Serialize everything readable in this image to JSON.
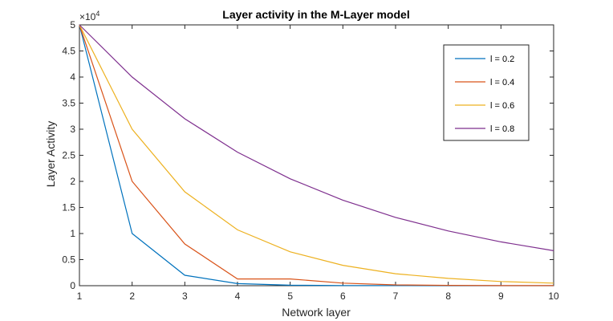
{
  "chart_data": {
    "type": "line",
    "title": "Layer activity in the M-Layer model",
    "xlabel": "Network layer",
    "ylabel": "Layer Activity",
    "y_exponent_base": "×10",
    "y_exponent_power": "4",
    "xlim": [
      1,
      10
    ],
    "ylim": [
      0,
      50000
    ],
    "x_ticks": [
      1,
      2,
      3,
      4,
      5,
      6,
      7,
      8,
      9,
      10
    ],
    "y_ticks": [
      0,
      5000,
      10000,
      15000,
      20000,
      25000,
      30000,
      35000,
      40000,
      45000,
      50000
    ],
    "y_tick_labels": [
      "0",
      "0.5",
      "1",
      "1.5",
      "2",
      "2.5",
      "3",
      "3.5",
      "4",
      "4.5",
      "5"
    ],
    "grid": false,
    "legend_position": "top-right",
    "x": [
      1,
      2,
      3,
      4,
      5,
      6,
      7,
      8,
      9,
      10
    ],
    "series": [
      {
        "name": "l = 0.2",
        "color": "#0072BD",
        "values": [
          50000,
          10000,
          2000,
          400,
          100,
          30,
          10,
          5,
          2,
          1
        ]
      },
      {
        "name": "l = 0.4",
        "color": "#D95319",
        "values": [
          50000,
          20000,
          8000,
          1300,
          1300,
          500,
          150,
          60,
          20,
          10
        ]
      },
      {
        "name": "l = 0.6",
        "color": "#EDB120",
        "values": [
          50000,
          30000,
          18000,
          10700,
          6500,
          3900,
          2300,
          1400,
          800,
          500
        ]
      },
      {
        "name": "l = 0.8",
        "color": "#7E2F8E",
        "values": [
          50000,
          40000,
          32000,
          25600,
          20500,
          16400,
          13100,
          10500,
          8400,
          6700
        ]
      }
    ]
  }
}
